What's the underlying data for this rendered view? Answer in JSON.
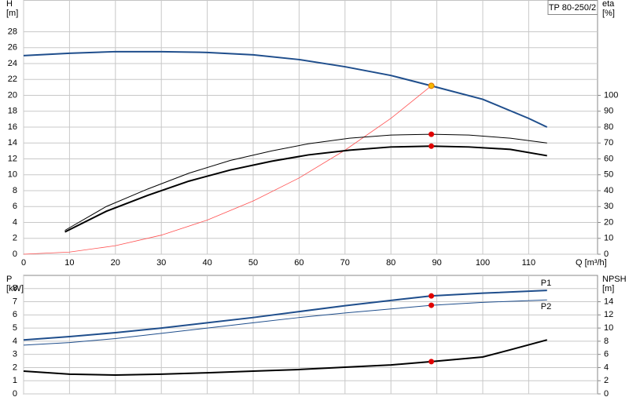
{
  "chart_data": [
    {
      "type": "line",
      "title": "TP 80-250/2",
      "xlabel": "Q [m³/h]",
      "ylabel": [
        "H",
        "[m]"
      ],
      "y2label": [
        "eta",
        "[%]"
      ],
      "xlim": [
        0,
        125
      ],
      "xticks": [
        0,
        10,
        20,
        30,
        40,
        50,
        60,
        70,
        80,
        90,
        100,
        110
      ],
      "xtick_labels": true,
      "ylim": [
        0,
        32
      ],
      "yticks": [
        0,
        2,
        4,
        6,
        8,
        10,
        12,
        14,
        16,
        18,
        20,
        22,
        24,
        26,
        28
      ],
      "y2lim": [
        0,
        160
      ],
      "y2ticks": [
        0,
        10,
        20,
        30,
        40,
        50,
        60,
        70,
        80,
        90,
        100
      ],
      "grid": true,
      "series": [
        {
          "x": [
            0,
            10,
            20,
            30,
            40,
            50,
            60,
            70,
            80,
            88.8,
            100,
            110,
            114
          ],
          "values": [
            25,
            25.3,
            25.5,
            25.5,
            25.4,
            25.1,
            24.5,
            23.6,
            22.5,
            21.2,
            19.5,
            17.1,
            16.0
          ],
          "color": "#1f4e8c",
          "width": 2
        },
        {
          "x": [
            0,
            10,
            20,
            30,
            40,
            50,
            60,
            70,
            80,
            88.8
          ],
          "values": [
            0,
            0.27,
            1.07,
            2.4,
            4.3,
            6.7,
            9.6,
            13.1,
            17.1,
            21.2
          ],
          "color": "#ff5050",
          "width": 0.8
        },
        {
          "x": [
            9,
            18,
            27,
            36,
            45,
            54,
            62,
            71,
            80,
            88.8,
            97,
            106,
            114
          ],
          "values": [
            15,
            30,
            41,
            51,
            59,
            65,
            69.5,
            73,
            75,
            75.5,
            75,
            73,
            70
          ],
          "color": "#000000",
          "width": 1,
          "axis": "y2"
        },
        {
          "x": [
            9,
            18,
            27,
            36,
            45,
            54,
            62,
            71,
            80,
            88.8,
            97,
            106,
            114
          ],
          "values": [
            14,
            27,
            37,
            46,
            53,
            58.5,
            62.5,
            65.5,
            67.5,
            68,
            67.5,
            66,
            62
          ],
          "color": "#000000",
          "width": 2,
          "axis": "y2"
        }
      ],
      "points": [
        {
          "x": 88.8,
          "value": 21.2,
          "color": "#f5b800"
        },
        {
          "x": 88.8,
          "value": 75.5,
          "color": "#e00000",
          "axis": "y2"
        },
        {
          "x": 88.8,
          "value": 68,
          "color": "#e00000",
          "axis": "y2"
        }
      ]
    },
    {
      "type": "line",
      "ylabel": [
        "P",
        "[kW]"
      ],
      "y2label": [
        "NPSH",
        "[m]"
      ],
      "xlim": [
        0,
        125
      ],
      "xticks": [
        0,
        10,
        20,
        30,
        40,
        50,
        60,
        70,
        80,
        90,
        100,
        110
      ],
      "xtick_labels": false,
      "ylim": [
        0,
        9
      ],
      "yticks": [
        0,
        1,
        2,
        3,
        4,
        5,
        6,
        7,
        8
      ],
      "y2lim": [
        0,
        18
      ],
      "y2ticks": [
        0,
        2,
        4,
        6,
        8,
        10,
        12,
        14
      ],
      "grid": true,
      "series": [
        {
          "name": "P1",
          "x": [
            0,
            10,
            20,
            30,
            40,
            50,
            60,
            70,
            80,
            88.8,
            100,
            114
          ],
          "values": [
            4.1,
            4.35,
            4.65,
            5.0,
            5.4,
            5.8,
            6.25,
            6.7,
            7.1,
            7.44,
            7.65,
            7.86
          ],
          "color": "#1f4e8c",
          "width": 2
        },
        {
          "name": "P2",
          "x": [
            0,
            10,
            20,
            30,
            40,
            50,
            60,
            70,
            80,
            88.8,
            100,
            114
          ],
          "values": [
            3.7,
            3.9,
            4.2,
            4.6,
            5.0,
            5.4,
            5.8,
            6.15,
            6.45,
            6.73,
            6.95,
            7.14
          ],
          "color": "#1f4e8c",
          "width": 1
        },
        {
          "x": [
            0,
            10,
            20,
            30,
            40,
            50,
            60,
            70,
            80,
            88.8,
            100,
            106,
            114
          ],
          "values": [
            3.45,
            3.0,
            2.86,
            3.0,
            3.2,
            3.45,
            3.7,
            4.05,
            4.4,
            4.9,
            5.6,
            6.7,
            8.2
          ],
          "color": "#000000",
          "width": 2,
          "axis": "y2"
        }
      ],
      "points": [
        {
          "x": 88.8,
          "value": 7.44,
          "color": "#e00000"
        },
        {
          "x": 88.8,
          "value": 6.73,
          "color": "#e00000"
        },
        {
          "x": 88.8,
          "value": 4.9,
          "color": "#e00000",
          "axis": "y2"
        }
      ]
    }
  ]
}
